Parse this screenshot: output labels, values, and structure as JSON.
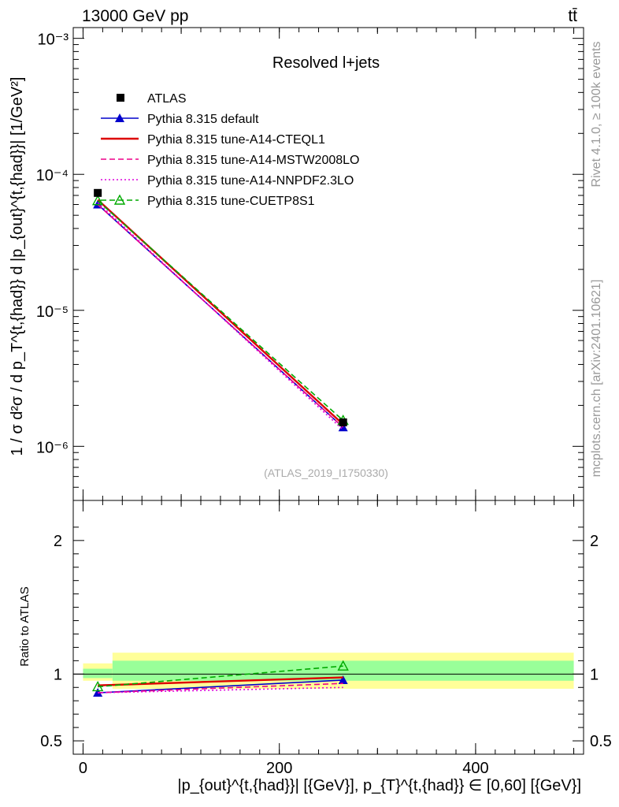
{
  "header": {
    "energy_label": "13000 GeV pp",
    "process_label": "tt̄"
  },
  "side_labels": {
    "rivet": "Rivet 4.1.0, ≥ 100k events",
    "mcplots": "mcplots.cern.ch [arXiv:2401.10621]"
  },
  "chart_data": [
    {
      "type": "line",
      "panel": "main",
      "title": "Resolved l+jets",
      "watermark": "(ATLAS_2019_I1750330)",
      "ylabel": "1 / σ d²σ / d p_T^{t,{had}} d |p_{out}^{t,{had}}| [1/GeV²]",
      "yscale": "log",
      "ylim": [
        4e-07,
        0.0012
      ],
      "xlim": [
        -10,
        510
      ],
      "y_ticks": [
        {
          "value": 1e-06,
          "label": "10⁻⁶"
        },
        {
          "value": 1e-05,
          "label": "10⁻⁵"
        },
        {
          "value": 0.0001,
          "label": "10⁻⁴"
        },
        {
          "value": 0.001,
          "label": "10⁻³"
        }
      ],
      "x": [
        15,
        265
      ],
      "data": {
        "name": "ATLAS",
        "values": [
          7.3e-05,
          1.5e-06
        ]
      },
      "series": [
        {
          "name": "Pythia 8.315 default",
          "color": "#0000cc",
          "style": "solid-marker",
          "values": [
            6e-05,
            1.38e-06
          ]
        },
        {
          "name": "Pythia 8.315 tune-A14-CTEQL1",
          "color": "#dd0000",
          "style": "solid",
          "values": [
            6.5e-05,
            1.45e-06
          ]
        },
        {
          "name": "Pythia 8.315 tune-A14-MSTW2008LO",
          "color": "#ee0088",
          "style": "dashed",
          "values": [
            6e-05,
            1.38e-06
          ]
        },
        {
          "name": "Pythia 8.315 tune-A14-NNPDF2.3LO",
          "color": "#dd00dd",
          "style": "dotted",
          "values": [
            6.2e-05,
            1.32e-06
          ]
        },
        {
          "name": "Pythia 8.315 tune-CUETP8S1",
          "color": "#00aa00",
          "style": "dashed-open-marker",
          "values": [
            6.4e-05,
            1.55e-06
          ]
        }
      ]
    },
    {
      "type": "line",
      "panel": "ratio",
      "ylabel": "Ratio to ATLAS",
      "xlabel": "|p_{out}^{t,{had}}| [{GeV}], p_{T}^{t,{had}} ∈ [0,60] [{GeV}]",
      "ylim": [
        0.4,
        2.3
      ],
      "xlim": [
        -10,
        510
      ],
      "y_ticks": [
        {
          "value": 0.5,
          "label": "0.5"
        },
        {
          "value": 1,
          "label": "1"
        },
        {
          "value": 2,
          "label": "2"
        }
      ],
      "x_ticks": [
        {
          "value": 0,
          "label": "0"
        },
        {
          "value": 200,
          "label": "200"
        },
        {
          "value": 400,
          "label": "400"
        }
      ],
      "bands": [
        {
          "x": [
            0,
            30
          ],
          "green": [
            0.97,
            1.04
          ],
          "yellow": [
            0.95,
            1.08
          ]
        },
        {
          "x": [
            30,
            500
          ],
          "green": [
            0.95,
            1.1
          ],
          "yellow": [
            0.89,
            1.16
          ]
        }
      ],
      "x": [
        15,
        265
      ],
      "series": [
        {
          "name": "Pythia 8.315 default",
          "color": "#0000cc",
          "style": "solid-marker",
          "values": [
            0.86,
            0.955
          ]
        },
        {
          "name": "Pythia 8.315 tune-A14-CTEQL1",
          "color": "#dd0000",
          "style": "solid",
          "values": [
            0.915,
            0.975
          ]
        },
        {
          "name": "Pythia 8.315 tune-A14-MSTW2008LO",
          "color": "#ee0088",
          "style": "dashed",
          "values": [
            0.86,
            0.93
          ]
        },
        {
          "name": "Pythia 8.315 tune-A14-NNPDF2.3LO",
          "color": "#dd00dd",
          "style": "dotted",
          "values": [
            0.86,
            0.9
          ]
        },
        {
          "name": "Pythia 8.315 tune-CUETP8S1",
          "color": "#00aa00",
          "style": "dashed-open-marker",
          "values": [
            0.905,
            1.06
          ]
        }
      ]
    }
  ]
}
